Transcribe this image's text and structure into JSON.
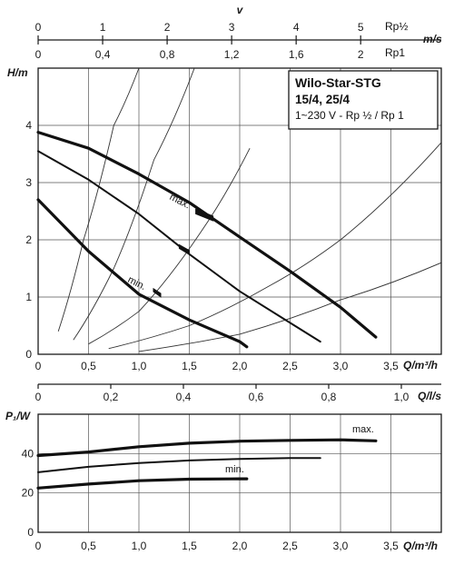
{
  "chart_data": [
    {
      "type": "line",
      "title": "Wilo-Star-STG",
      "subtitle_lines": [
        "15/4, 25/4",
        "1~230 V - Rp ½ / Rp 1"
      ],
      "xlabel": "Q/m³/h",
      "ylabel": "H/m",
      "xlim": [
        0,
        4
      ],
      "ylim": [
        0,
        5
      ],
      "xticks": [
        "0",
        "0,5",
        "1,0",
        "1,5",
        "2,0",
        "2,5",
        "3,0",
        "3,5"
      ],
      "yticks": [
        "0",
        "1",
        "2",
        "3",
        "4"
      ],
      "grid": true,
      "top_axes": [
        {
          "label": "v",
          "ticks": [
            "0",
            "1",
            "2",
            "3",
            "4",
            "5"
          ],
          "xlim": [
            0,
            6.25
          ]
        },
        {
          "label": "m/s",
          "sublabels": [
            "Rp½",
            "Rp1"
          ],
          "ticks": [
            "0",
            "0,4",
            "0,8",
            "1,2",
            "1,6",
            "2"
          ],
          "xlim": [
            0,
            2.5
          ]
        }
      ],
      "series": [
        {
          "name": "max.",
          "x": [
            0,
            0.5,
            1.0,
            1.5,
            2.0,
            2.5,
            3.0,
            3.35
          ],
          "y": [
            3.88,
            3.6,
            3.15,
            2.65,
            2.05,
            1.45,
            0.82,
            0.3
          ]
        },
        {
          "x": [
            0,
            0.5,
            1.0,
            1.5,
            2.0,
            2.5,
            2.8
          ],
          "y": [
            3.55,
            3.05,
            2.45,
            1.75,
            1.1,
            0.55,
            0.22
          ]
        },
        {
          "name": "min.",
          "x": [
            0,
            0.5,
            1.0,
            1.5,
            2.0,
            2.07
          ],
          "y": [
            2.7,
            1.8,
            1.05,
            0.6,
            0.22,
            0.13
          ]
        }
      ],
      "system_curves": [
        {
          "x": [
            0.2,
            0.45,
            0.75,
            1.0
          ],
          "y": [
            0.4,
            2.0,
            4.0,
            5.0
          ]
        },
        {
          "x": [
            0.35,
            0.75,
            1.15,
            1.55
          ],
          "y": [
            0.25,
            1.5,
            3.4,
            5.0
          ]
        },
        {
          "x": [
            0.5,
            1.0,
            1.6,
            2.1
          ],
          "y": [
            0.18,
            0.75,
            2.1,
            3.6
          ]
        },
        {
          "x": [
            0.7,
            1.5,
            2.3,
            3.0,
            4.0
          ],
          "y": [
            0.1,
            0.5,
            1.2,
            2.0,
            3.7
          ]
        },
        {
          "x": [
            1.0,
            2.0,
            3.0,
            4.0
          ],
          "y": [
            0.05,
            0.35,
            0.95,
            1.6
          ]
        }
      ],
      "markers": [
        {
          "x": 1.65,
          "y": 2.4
        },
        {
          "x": 1.45,
          "y": 1.8
        },
        {
          "x": 1.18,
          "y": 1.05
        }
      ]
    },
    {
      "type": "line",
      "xlabel": "Q/m³/h",
      "ylabel": "P₁/W",
      "xlim": [
        0,
        4
      ],
      "ylim": [
        0,
        60
      ],
      "xticks": [
        "0",
        "0,5",
        "1,0",
        "1,5",
        "2,0",
        "2,5",
        "3,0",
        "3,5"
      ],
      "yticks": [
        "0",
        "20",
        "40"
      ],
      "grid": true,
      "top_axis": {
        "label": "Q/l/s",
        "ticks": [
          "0",
          "0,2",
          "0,4",
          "0,6",
          "0,8",
          "1,0"
        ],
        "xlim": [
          0,
          1.11
        ]
      },
      "series": [
        {
          "name": "max.",
          "x": [
            0,
            0.5,
            1.0,
            1.5,
            2.0,
            2.5,
            3.0,
            3.35
          ],
          "y": [
            39,
            40.8,
            43.5,
            45.3,
            46.3,
            46.7,
            47,
            46.5
          ]
        },
        {
          "x": [
            0,
            0.5,
            1.0,
            1.5,
            2.0,
            2.5,
            2.8
          ],
          "y": [
            30.5,
            33.3,
            35.2,
            36.5,
            37.3,
            37.7,
            37.7
          ]
        },
        {
          "name": "min.",
          "x": [
            0,
            0.5,
            1.0,
            1.5,
            2.0,
            2.07
          ],
          "y": [
            22.5,
            24.5,
            26.2,
            27,
            27.2,
            27.2
          ]
        }
      ]
    }
  ]
}
